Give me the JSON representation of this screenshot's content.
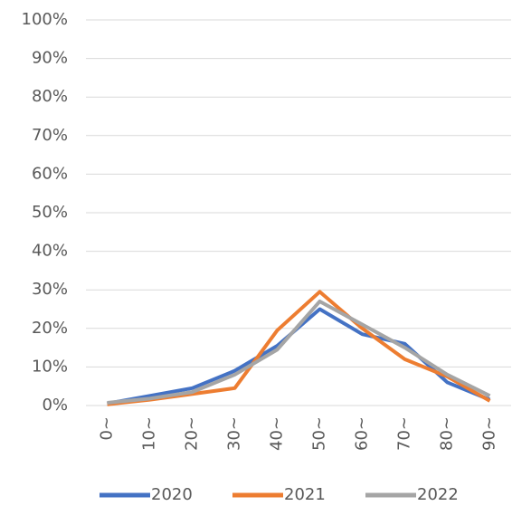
{
  "chart_data": {
    "type": "line",
    "categories": [
      "0~",
      "10~",
      "20~",
      "30~",
      "40~",
      "50~",
      "60~",
      "70~",
      "80~",
      "90~"
    ],
    "series": [
      {
        "name": "2020",
        "color": "#4472c4",
        "values": [
          0.5,
          2.5,
          4.5,
          9,
          15.5,
          25,
          18.5,
          16,
          6,
          1.5
        ]
      },
      {
        "name": "2021",
        "color": "#ed7d31",
        "values": [
          0.3,
          1.5,
          3,
          4.5,
          19.5,
          29.5,
          20,
          12,
          7.5,
          1.2
        ]
      },
      {
        "name": "2022",
        "color": "#a5a5a5",
        "values": [
          0.7,
          1.8,
          3.5,
          8,
          14.5,
          27,
          21,
          15,
          8,
          2.5
        ]
      }
    ],
    "ylim": [
      0,
      100
    ],
    "yticks": [
      {
        "value": 0,
        "label": "0%"
      },
      {
        "value": 10,
        "label": "10%"
      },
      {
        "value": 20,
        "label": "20%"
      },
      {
        "value": 30,
        "label": "30%"
      },
      {
        "value": 40,
        "label": "40%"
      },
      {
        "value": 50,
        "label": "50%"
      },
      {
        "value": 60,
        "label": "60%"
      },
      {
        "value": 70,
        "label": "70%"
      },
      {
        "value": 80,
        "label": "80%"
      },
      {
        "value": 90,
        "label": "90%"
      },
      {
        "value": 100,
        "label": "100%"
      }
    ],
    "grid": true,
    "legend": "bottom"
  }
}
